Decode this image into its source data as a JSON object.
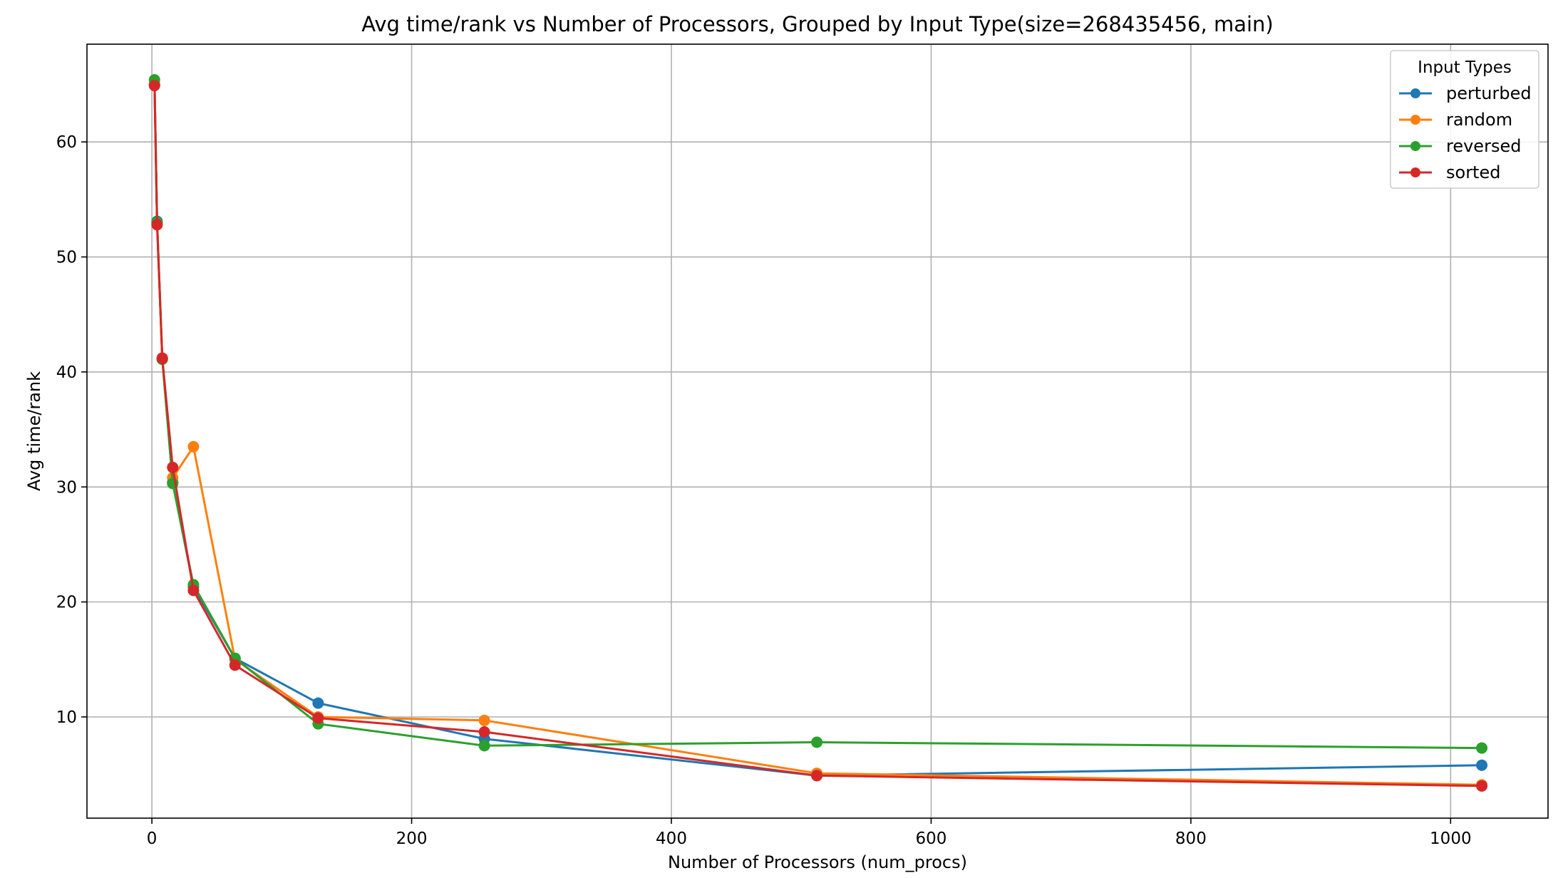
{
  "chart_data": {
    "type": "line",
    "title": "Avg time/rank vs Number of Processors, Grouped by Input Type(size=268435456, main)",
    "xlabel": "Number of Processors (num_procs)",
    "ylabel": "Avg time/rank",
    "xlim": [
      -50,
      1075
    ],
    "ylim": [
      1.2,
      68.5
    ],
    "xticks": [
      0,
      200,
      400,
      600,
      800,
      1000
    ],
    "yticks": [
      10,
      20,
      30,
      40,
      50,
      60
    ],
    "grid": true,
    "legend": {
      "title": "Input Types",
      "position": "top-right"
    },
    "x": [
      2,
      4,
      8,
      16,
      32,
      64,
      128,
      256,
      512,
      1024
    ],
    "series": [
      {
        "name": "perturbed",
        "color": "#1f77b4",
        "values": [
          65.0,
          53.1,
          41.2,
          30.4,
          21.3,
          15.1,
          11.2,
          8.1,
          4.9,
          5.8
        ]
      },
      {
        "name": "random",
        "color": "#ff7f0e",
        "values": [
          65.0,
          53.0,
          41.1,
          30.8,
          33.5,
          15.0,
          10.0,
          9.7,
          5.1,
          4.1
        ]
      },
      {
        "name": "reversed",
        "color": "#2ca02c",
        "values": [
          65.4,
          53.0,
          41.1,
          30.3,
          21.5,
          15.1,
          9.4,
          7.5,
          7.8,
          7.3
        ]
      },
      {
        "name": "sorted",
        "color": "#d62728",
        "values": [
          64.9,
          52.8,
          41.2,
          31.7,
          21.0,
          14.5,
          9.9,
          8.7,
          4.9,
          4.0
        ]
      }
    ]
  }
}
